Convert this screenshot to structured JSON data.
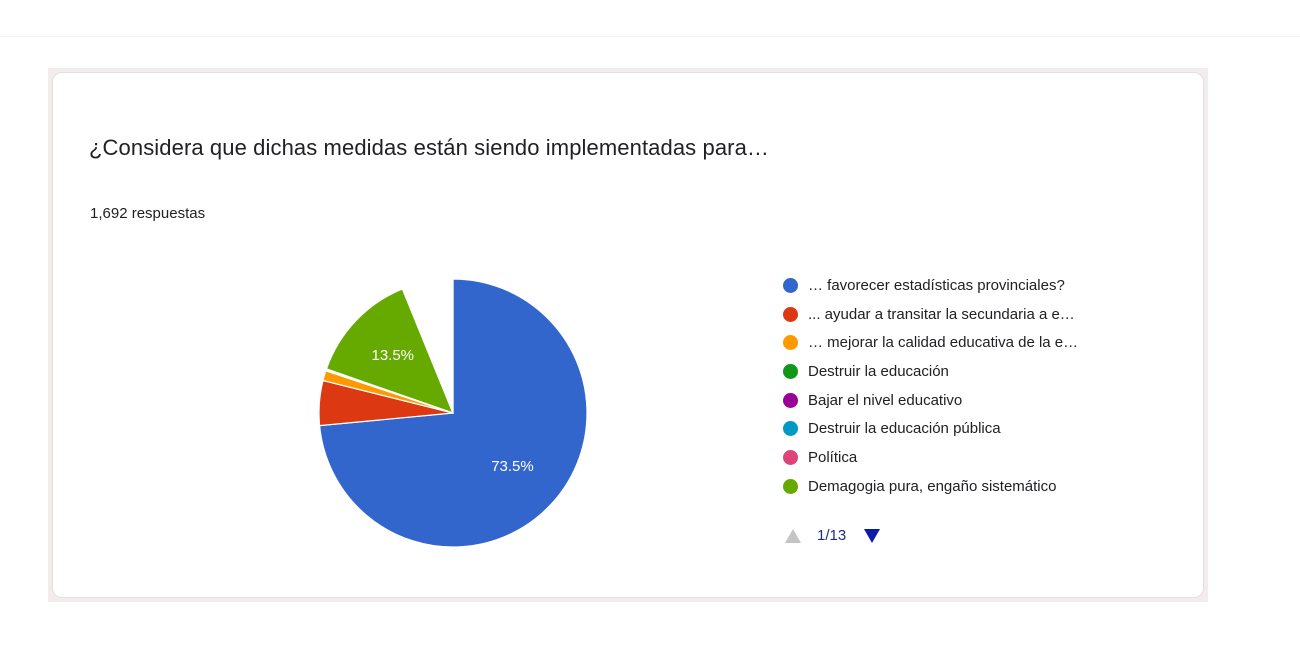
{
  "question": {
    "title": "¿Considera que dichas medidas están siendo implementadas para…",
    "response_count": "1,692 respuestas"
  },
  "legend": {
    "items": [
      {
        "label": "… favorecer estadísticas provinciales?",
        "color": "#3366cc"
      },
      {
        "label": "... ayudar a transitar la secundaria a e…",
        "color": "#dc3912"
      },
      {
        "label": "… mejorar la calidad educativa de la e…",
        "color": "#ff9900"
      },
      {
        "label": "Destruir la educación",
        "color": "#109618"
      },
      {
        "label": "Bajar el nivel educativo",
        "color": "#990099"
      },
      {
        "label": "Destruir la educación pública",
        "color": "#0099c6"
      },
      {
        "label": "Política",
        "color": "#dd4477"
      },
      {
        "label": "Demagogia pura, engaño sistemático",
        "color": "#66aa00"
      }
    ],
    "pager": {
      "text": "1/13",
      "prev_enabled": false,
      "next_enabled": true
    }
  },
  "chart_data": {
    "type": "pie",
    "start_angle_deg": 90,
    "slices": [
      {
        "label": "… favorecer estadísticas provinciales?",
        "value": 73.5,
        "color": "#3366cc",
        "data_label": "73.5%"
      },
      {
        "label": "... ayudar a transitar la secundaria a e…",
        "value": 5.4,
        "color": "#dc3912",
        "data_label": ""
      },
      {
        "label": "… mejorar la calidad educativa de la e…",
        "value": 1.2,
        "color": "#ff9900",
        "data_label": ""
      },
      {
        "label": "Destruir la educación",
        "value": 0.06,
        "color": "#109618",
        "data_label": ""
      },
      {
        "label": "Bajar el nivel educativo",
        "value": 0.06,
        "color": "#990099",
        "data_label": ""
      },
      {
        "label": "Destruir la educación pública",
        "value": 0.06,
        "color": "#0099c6",
        "data_label": ""
      },
      {
        "label": "Política",
        "value": 0.06,
        "color": "#dd4477",
        "data_label": ""
      },
      {
        "label": "Demagogia pura, engaño sistemático",
        "value": 13.5,
        "color": "#66aa00",
        "data_label": "13.5%"
      },
      {
        "label": "",
        "value": 6.16,
        "color": "#ffffff",
        "data_label": ""
      }
    ]
  }
}
